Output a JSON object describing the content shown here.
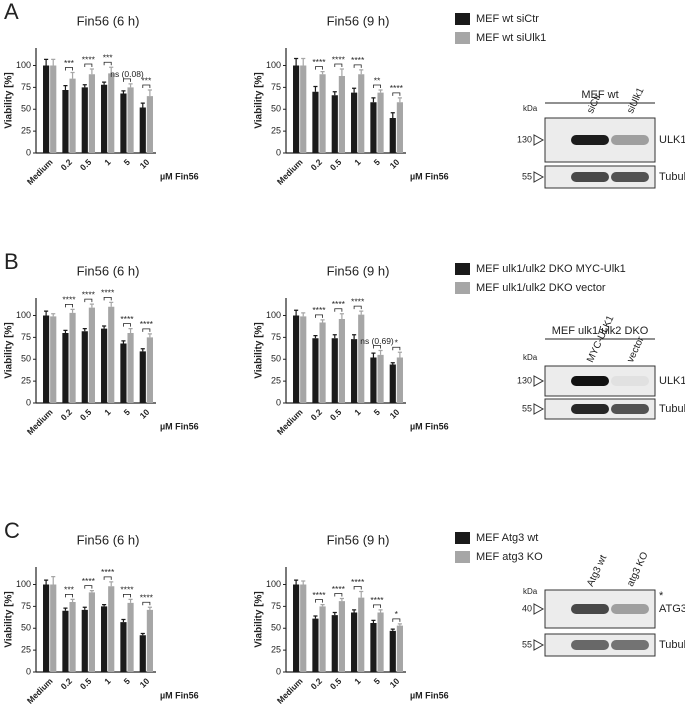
{
  "panel_labels": [
    "A",
    "B",
    "C"
  ],
  "chart_data": [
    {
      "type": "bar",
      "title": "Fin56 (6 h)",
      "y_label": "Viability [%]",
      "x_label": "µM Fin56",
      "categories": [
        "Medium",
        "0.2",
        "0.5",
        "1",
        "5",
        "10"
      ],
      "ylim": [
        0,
        120
      ],
      "yticks": [
        0,
        25,
        50,
        75,
        100
      ],
      "series": [
        {
          "name": "MEF wt siCtr",
          "color": "#1a1a1a",
          "values": [
            100,
            72,
            75,
            78,
            68,
            52
          ],
          "errors": [
            7,
            5,
            3,
            3,
            3,
            5
          ]
        },
        {
          "name": "MEF wt siUlk1",
          "color": "#a6a6a6",
          "values": [
            100,
            85,
            90,
            91,
            75,
            65
          ],
          "errors": [
            7,
            7,
            6,
            7,
            4,
            7
          ]
        }
      ],
      "significance": [
        null,
        "***",
        "****",
        "***",
        "ns (0.08)",
        "***"
      ]
    },
    {
      "type": "bar",
      "title": "Fin56 (9 h)",
      "y_label": "Viability [%]",
      "x_label": "µM Fin56",
      "categories": [
        "Medium",
        "0.2",
        "0.5",
        "1",
        "5",
        "10"
      ],
      "ylim": [
        0,
        120
      ],
      "yticks": [
        0,
        25,
        50,
        75,
        100
      ],
      "series": [
        {
          "color": "#1a1a1a",
          "values": [
            100,
            70,
            66,
            69,
            58,
            40
          ],
          "errors": [
            8,
            6,
            4,
            5,
            5,
            6
          ]
        },
        {
          "color": "#a6a6a6",
          "values": [
            100,
            90,
            88,
            90,
            69,
            58
          ],
          "errors": [
            8,
            3,
            8,
            5,
            3,
            5
          ]
        }
      ],
      "significance": [
        null,
        "****",
        "****",
        "****",
        "**",
        "****"
      ]
    },
    {
      "type": "bar",
      "title": "Fin56 (6 h)",
      "y_label": "Viability [%]",
      "x_label": "µM Fin56",
      "categories": [
        "Medium",
        "0.2",
        "0.5",
        "1",
        "5",
        "10"
      ],
      "ylim": [
        0,
        120
      ],
      "yticks": [
        0,
        25,
        50,
        75,
        100
      ],
      "series": [
        {
          "name": "MEF ulk1/ulk2 DKO MYC-Ulk1",
          "color": "#1a1a1a",
          "values": [
            100,
            80,
            82,
            85,
            68,
            59
          ],
          "errors": [
            5,
            3,
            3,
            3,
            3,
            3
          ]
        },
        {
          "name": "MEF ulk1/ulk2 DKO vector",
          "color": "#a6a6a6",
          "values": [
            99,
            103,
            109,
            110,
            80,
            75
          ],
          "errors": [
            3,
            4,
            4,
            5,
            5,
            4
          ]
        }
      ],
      "significance": [
        null,
        "****",
        "****",
        "****",
        "****",
        "****"
      ]
    },
    {
      "type": "bar",
      "title": "Fin56 (9 h)",
      "y_label": "Viability [%]",
      "x_label": "µM Fin56",
      "categories": [
        "Medium",
        "0.2",
        "0.5",
        "1",
        "5",
        "10"
      ],
      "ylim": [
        0,
        120
      ],
      "yticks": [
        0,
        25,
        50,
        75,
        100
      ],
      "series": [
        {
          "color": "#1a1a1a",
          "values": [
            100,
            74,
            74,
            73,
            52,
            44
          ],
          "errors": [
            6,
            3,
            4,
            5,
            5,
            2
          ]
        },
        {
          "color": "#a6a6a6",
          "values": [
            99,
            92,
            96,
            101,
            55,
            52
          ],
          "errors": [
            4,
            3,
            6,
            4,
            5,
            6
          ]
        }
      ],
      "significance": [
        null,
        "****",
        "****",
        "****",
        "ns (0.69)",
        "*"
      ]
    },
    {
      "type": "bar",
      "title": "Fin56 (6 h)",
      "y_label": "Viability [%]",
      "x_label": "µM Fin56",
      "categories": [
        "Medium",
        "0.2",
        "0.5",
        "1",
        "5",
        "10"
      ],
      "ylim": [
        0,
        120
      ],
      "yticks": [
        0,
        25,
        50,
        75,
        100
      ],
      "series": [
        {
          "name": "MEF Atg3 wt",
          "color": "#1a1a1a",
          "values": [
            100,
            70,
            71,
            75,
            57,
            42
          ],
          "errors": [
            5,
            3,
            3,
            2,
            3,
            2
          ]
        },
        {
          "name": "MEF atg3 KO",
          "color": "#a6a6a6",
          "values": [
            100,
            80,
            91,
            98,
            79,
            71
          ],
          "errors": [
            9,
            3,
            2,
            5,
            4,
            3
          ]
        }
      ],
      "significance": [
        null,
        "***",
        "****",
        "****",
        "****",
        "****"
      ]
    },
    {
      "type": "bar",
      "title": "Fin56 (9 h)",
      "y_label": "Viability [%]",
      "x_label": "µM Fin56",
      "categories": [
        "Medium",
        "0.2",
        "0.5",
        "1",
        "5",
        "10"
      ],
      "ylim": [
        0,
        120
      ],
      "yticks": [
        0,
        25,
        50,
        75,
        100
      ],
      "series": [
        {
          "color": "#1a1a1a",
          "values": [
            100,
            61,
            65,
            68,
            56,
            47
          ],
          "errors": [
            5,
            3,
            3,
            3,
            3,
            2
          ]
        },
        {
          "color": "#a6a6a6",
          "values": [
            100,
            75,
            81,
            85,
            68,
            53
          ],
          "errors": [
            4,
            2,
            3,
            7,
            3,
            2
          ]
        }
      ],
      "significance": [
        null,
        "****",
        "****",
        "****",
        "****",
        "*"
      ]
    }
  ],
  "blots": [
    {
      "header": "MEF wt",
      "kda": "kDa",
      "lanes": [
        "siCtr",
        "siUlk1"
      ],
      "rows": [
        {
          "marker": "130",
          "protein": "ULK1"
        },
        {
          "marker": "55",
          "protein": "Tubulin"
        }
      ]
    },
    {
      "header": "MEF ulk1/ulk2 DKO",
      "kda": "kDa",
      "lanes": [
        "MYC-ULK1",
        "vector"
      ],
      "rows": [
        {
          "marker": "130",
          "protein": "ULK1"
        },
        {
          "marker": "55",
          "protein": "Tubulin"
        }
      ]
    },
    {
      "kda": "kDa",
      "lanes": [
        "Atg3 wt",
        "atg3 KO"
      ],
      "asterisk": "*",
      "rows": [
        {
          "marker": "40",
          "protein": "ATG3"
        },
        {
          "marker": "55",
          "protein": "Tubulin"
        }
      ]
    }
  ]
}
